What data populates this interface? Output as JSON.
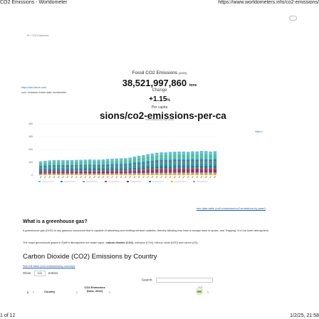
{
  "print": {
    "title": "CO2 Emissions - Worldometer",
    "url": "https://www.worldometers.info/co2-emissions/",
    "page": "1 of 12",
    "datetime": "1/2/25, 21:58"
  },
  "breadcrumb": "W / CO2 Emissions",
  "side_links": {
    "link1": "https://ads.france.com/",
    "link2": "com / emission-france-data; worldometer"
  },
  "stat": {
    "title": "Fossil CO2 Emissions",
    "year": "(2022)",
    "value": "38,521,997,860",
    "unit": "tons",
    "label_change": "Change",
    "change": "+1.15",
    "change_unit": "%",
    "label_per_capita": "Per capita"
  },
  "big_url": "sions/co2-emissions-per-ca",
  "chart": {
    "title": "CO2 emissions by Year (tons)",
    "right_link": "https://...",
    "see_data": "see data table (co2-emissions/co2-emissions-by-year/)"
  },
  "chart_data": {
    "type": "bar",
    "stacked": true,
    "yticks": [
      "400",
      "300",
      "200",
      "100",
      "0"
    ],
    "ylim": [
      0,
      400
    ],
    "ylabel": "",
    "values": [
      108,
      112,
      115,
      118,
      118,
      118,
      117,
      118,
      119,
      120,
      121,
      123,
      121,
      121,
      123,
      126,
      128,
      130,
      131,
      132,
      137,
      145,
      151,
      156,
      164,
      169,
      175,
      178,
      178,
      181,
      183,
      184,
      184,
      182,
      186,
      185,
      189,
      188,
      184,
      187
    ],
    "segment_fractions": [
      0.05,
      0.06,
      0.07,
      0.06,
      0.07,
      0.08,
      0.09,
      0.09,
      0.1,
      0.1,
      0.11,
      0.12
    ],
    "segment_colors": [
      "#f4b400",
      "#9e9e9e",
      "#6d4c41",
      "#8e24aa",
      "#e53935",
      "#00897b",
      "#1e88e5",
      "#43a047",
      "#5c6bc0",
      "#26c6da",
      "#66bb6a",
      "#4fc3f7"
    ],
    "legend": [
      "",
      "",
      "",
      "",
      "",
      "",
      "",
      ""
    ],
    "legend_colors": [
      "#4fc3f7",
      "#1e88e5",
      "#66bb6a",
      "#e53935",
      "#8e24aa",
      "#00897b",
      "#f4b400",
      "#9e9e9e"
    ]
  },
  "section1": {
    "heading": "What is a greenhouse gas?",
    "para1": "A greenhouse gas (GHG) is any gaseous compound that is capable of absorbing and emitting infrared radiation, thereby allowing less heat to escape back to space, and \"trapping\" it in the lower atmosphere.",
    "para2_pre": "The major greenhouse gases in Earth's atmosphere are water vapor, ",
    "para2_bold": "carbon dioxide (CO2)",
    "para2_post": ", methane (CH4), nitrous oxide (N2O) and ozone (O3)."
  },
  "section2": {
    "heading": "Carbon Dioxide (CO2) Emissions by Country",
    "see_table": "See full table (co2-emissions/by-country/)",
    "show_label": "Show",
    "show_value": "100",
    "entries_label": "entries",
    "search_label": "Search:",
    "table_headers": {
      "num": "#",
      "country": "Country",
      "co2": "CO2 Emissions (tons, 2022)",
      "flag_label": "1 yr"
    }
  }
}
